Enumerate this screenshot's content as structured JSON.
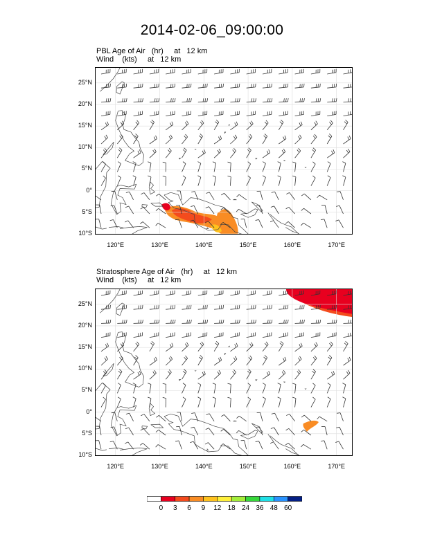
{
  "title": "2014-02-06_09:00:00",
  "panels": [
    {
      "line1": "PBL Age of Air   (hr)     at   12 km",
      "line2": "Wind    (kts)     at   12 km"
    },
    {
      "line1": "Stratosphere Age of Air   (hr)     at   12 km",
      "line2": "Wind    (kts)     at   12 km"
    }
  ],
  "lat_ticks": [
    "25°N",
    "20°N",
    "15°N",
    "10°N",
    "5°N",
    "0°",
    "5°S",
    "10°S"
  ],
  "lon_ticks": [
    "120°E",
    "130°E",
    "140°E",
    "150°E",
    "160°E",
    "170°E"
  ],
  "colorbar": {
    "labels": [
      "0",
      "3",
      "6",
      "9",
      "12",
      "18",
      "24",
      "36",
      "48",
      "60"
    ],
    "colors": [
      "#ffffff",
      "#e8001f",
      "#f44b1d",
      "#f98c24",
      "#ffc21e",
      "#fff03a",
      "#a4ee3a",
      "#37d83b",
      "#1fe0e6",
      "#2993ff",
      "#041f84"
    ]
  },
  "map_colors": {
    "coast": "#444444",
    "grid": "#dddddd",
    "barb": "#333333"
  }
}
